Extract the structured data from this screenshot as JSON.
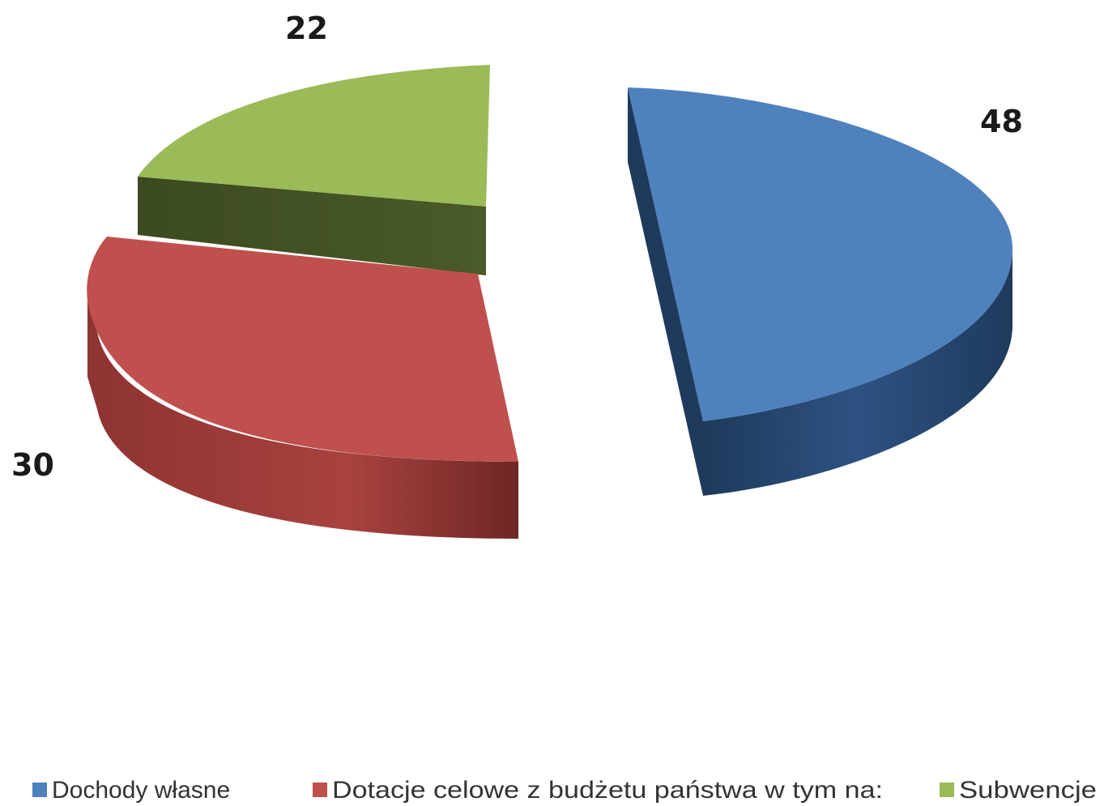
{
  "chart_data": {
    "type": "pie",
    "title": "",
    "slices": [
      {
        "name": "Dochody własne",
        "value": 48,
        "label": "48",
        "color": "#4f81bd",
        "side_color": "#2a4a72"
      },
      {
        "name": "Dotacje celowe z budżetu państwa w tym na:",
        "value": 30,
        "label": "30",
        "color": "#c0504d",
        "side_color": "#8e3432"
      },
      {
        "name": "Subwencje",
        "value": 22,
        "label": "22",
        "color": "#9bbb59",
        "side_color": "#4a5a28"
      }
    ],
    "exploded": true,
    "style": "3d",
    "legend_position": "bottom"
  }
}
